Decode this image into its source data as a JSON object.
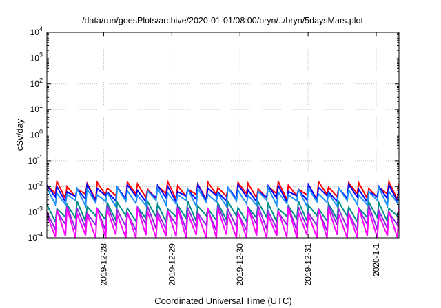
{
  "chart_data": {
    "type": "line",
    "title": "/data/run/goesPlots/archive/2020-01-01/08:00/bryn/../bryn/5daysMars.plot",
    "xlabel": "Coordinated Universal Time (UTC)",
    "ylabel": "cSv/day",
    "y_scale": "log",
    "ylim": [
      0.0001,
      10000
    ],
    "y_ticks": [
      {
        "base": "10",
        "exp": "-4"
      },
      {
        "base": "10",
        "exp": "-3"
      },
      {
        "base": "10",
        "exp": "-2"
      },
      {
        "base": "10",
        "exp": "-1"
      },
      {
        "base": "10",
        "exp": "0"
      },
      {
        "base": "10",
        "exp": "1"
      },
      {
        "base": "10",
        "exp": "2"
      },
      {
        "base": "10",
        "exp": "3"
      },
      {
        "base": "10",
        "exp": "4"
      }
    ],
    "xlim": [
      "2019-12-27 04:00",
      "2020-01-01 08:00"
    ],
    "x_ticks": [
      "2019-12-28",
      "2019-12-29",
      "2019-12-30",
      "2019-12-31",
      "2020-1-1"
    ],
    "grid": true,
    "cycles_per_day": 6.8,
    "series": [
      {
        "color": "#ff0000",
        "peak": 0.011,
        "trough": 0.004
      },
      {
        "color": "#0000ff",
        "peak": 0.0085,
        "trough": 0.0033
      },
      {
        "color": "#1e90ff",
        "peak": 0.0065,
        "trough": 0.0022
      },
      {
        "color": "#008b8b",
        "peak": 0.0019,
        "trough": 0.00055
      },
      {
        "color": "#8a2be2",
        "peak": 0.0013,
        "trough": 0.00025
      },
      {
        "color": "#ff00ff",
        "peak": 0.0011,
        "trough": 0.0001
      }
    ]
  }
}
